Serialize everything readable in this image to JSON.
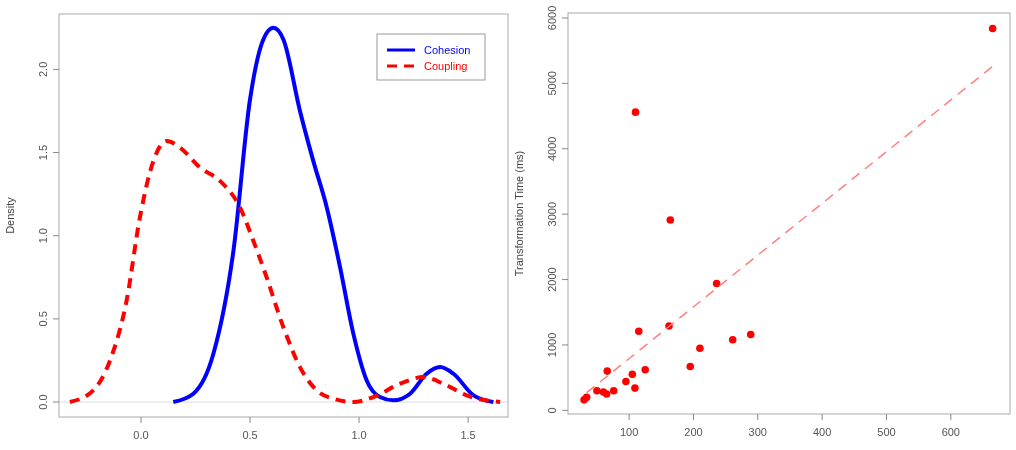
{
  "chart_data": [
    {
      "type": "line",
      "ylabel": "Density",
      "xlim": [
        -0.376,
        1.683
      ],
      "ylim": [
        -0.09,
        2.333
      ],
      "xticks": [
        {
          "value": 0,
          "label": "0.0"
        },
        0.5,
        {
          "value": 1,
          "label": "1.0"
        },
        1.5
      ],
      "yticks": [
        {
          "value": 0,
          "label": "0.0"
        },
        0.5,
        {
          "value": 1,
          "label": "1.0"
        },
        1.5,
        {
          "value": 2,
          "label": "2.0"
        }
      ],
      "grid": false,
      "legend": "top right",
      "ref_lines": [
        {
          "axis": "y",
          "value": 0,
          "color": "#dddddd"
        }
      ],
      "series": [
        {
          "name": "Cohesion",
          "color": "#0000ff",
          "line_style": "solid",
          "x": [
            0.148,
            0.24,
            0.332,
            0.424,
            0.5,
            0.561,
            0.607,
            0.653,
            0.729,
            0.79,
            0.852,
            0.913,
            0.974,
            1.035,
            1.096,
            1.157,
            1.234,
            1.31,
            1.372,
            1.433,
            1.525,
            1.616
          ],
          "values": [
            0,
            0.05,
            0.29,
            0.91,
            1.82,
            2.18,
            2.25,
            2.18,
            1.75,
            1.45,
            1.17,
            0.81,
            0.41,
            0.13,
            0.03,
            0.01,
            0.05,
            0.17,
            0.21,
            0.17,
            0.04,
            0
          ]
        },
        {
          "name": "Coupling",
          "color": "#ff0000",
          "line_style": "dashed",
          "x": [
            -0.326,
            -0.219,
            -0.142,
            -0.066,
            -0.005,
            0.057,
            0.118,
            0.179,
            0.271,
            0.362,
            0.454,
            0.515,
            0.576,
            0.653,
            0.729,
            0.806,
            0.882,
            0.974,
            1.066,
            1.188,
            1.295,
            1.387,
            1.494,
            1.647
          ],
          "values": [
            0,
            0.07,
            0.25,
            0.61,
            1.11,
            1.45,
            1.57,
            1.53,
            1.41,
            1.33,
            1.17,
            0.97,
            0.75,
            0.45,
            0.21,
            0.07,
            0.02,
            0,
            0.03,
            0.11,
            0.15,
            0.11,
            0.04,
            0
          ]
        }
      ]
    },
    {
      "type": "scatter",
      "ylabel": "Transformation Time (ms)",
      "xlim": [
        5,
        692
      ],
      "ylim": [
        -56,
        6076
      ],
      "xticks": [
        100,
        200,
        300,
        400,
        500,
        600
      ],
      "yticks": [
        0,
        1000,
        2000,
        3000,
        4000,
        5000,
        6000
      ],
      "grid": false,
      "legend": false,
      "series": [
        {
          "color": "#ff0000",
          "marker": "circle",
          "x": [
            665,
            110,
            164,
            236,
            162,
            115,
            289,
            261,
            210,
            195,
            125,
            66,
            105,
            95,
            109,
            76,
            50,
            60,
            65,
            34,
            30
          ],
          "values": [
            5840,
            4560,
            2910,
            1940,
            1290,
            1210,
            1160,
            1080,
            950,
            670,
            620,
            600,
            550,
            440,
            340,
            300,
            300,
            280,
            250,
            200,
            160
          ]
        },
        {
          "type": "line",
          "color": "#ff8080",
          "line_style": "dashed",
          "x": [
            34,
            665
          ],
          "values": [
            270,
            5260
          ]
        }
      ]
    }
  ]
}
